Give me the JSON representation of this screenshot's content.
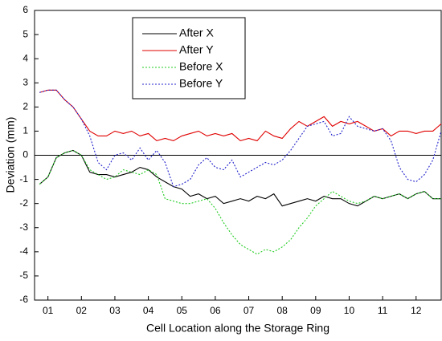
{
  "chart_data": {
    "type": "line",
    "xlabel": "Cell Location along the Storage Ring",
    "ylabel": "Deviation (mm)",
    "x": [
      0.75,
      1,
      1.25,
      1.5,
      1.75,
      2,
      2.25,
      2.5,
      2.75,
      3,
      3.25,
      3.5,
      3.75,
      4,
      4.25,
      4.5,
      4.75,
      5,
      5.25,
      5.5,
      5.75,
      6,
      6.25,
      6.5,
      6.75,
      7,
      7.25,
      7.5,
      7.75,
      8,
      8.25,
      8.5,
      8.75,
      9,
      9.25,
      9.5,
      9.75,
      10,
      10.25,
      10.5,
      10.75,
      11,
      11.25,
      11.5,
      11.75,
      12,
      12.25,
      12.5,
      12.75
    ],
    "series": [
      {
        "name": "After X",
        "color": "#000000",
        "dash": "none",
        "values": [
          -1.2,
          -0.9,
          -0.1,
          0.1,
          0.2,
          0,
          -0.7,
          -0.8,
          -0.8,
          -0.9,
          -0.8,
          -0.7,
          -0.5,
          -0.6,
          -0.9,
          -1.1,
          -1.3,
          -1.4,
          -1.7,
          -1.6,
          -1.8,
          -1.7,
          -2.0,
          -1.9,
          -1.8,
          -1.9,
          -1.7,
          -1.8,
          -1.6,
          -2.1,
          -2.0,
          -1.9,
          -1.8,
          -1.9,
          -1.7,
          -1.8,
          -1.8,
          -2.0,
          -2.1,
          -1.9,
          -1.7,
          -1.8,
          -1.7,
          -1.6,
          -1.8,
          -1.6,
          -1.5,
          -1.8,
          -1.8
        ]
      },
      {
        "name": "After Y",
        "color": "#e00000",
        "dash": "none",
        "values": [
          2.6,
          2.7,
          2.7,
          2.3,
          2.0,
          1.5,
          1.0,
          0.8,
          0.8,
          1.0,
          0.9,
          1.0,
          0.8,
          0.9,
          0.6,
          0.7,
          0.6,
          0.8,
          0.9,
          1.0,
          0.8,
          0.9,
          0.8,
          0.9,
          0.6,
          0.7,
          0.6,
          1.0,
          0.8,
          0.7,
          1.1,
          1.4,
          1.2,
          1.4,
          1.6,
          1.2,
          1.4,
          1.3,
          1.4,
          1.2,
          1.0,
          1.1,
          0.8,
          1.0,
          1.0,
          0.9,
          1.0,
          1.0,
          1.3
        ]
      },
      {
        "name": "Before X",
        "color": "#22cc22",
        "dash": "2 2",
        "values": [
          -1.2,
          -0.9,
          -0.1,
          0.1,
          0.2,
          0,
          -0.6,
          -0.8,
          -1.0,
          -0.9,
          -0.6,
          -0.7,
          -0.8,
          -0.6,
          -0.8,
          -1.8,
          -1.9,
          -2.0,
          -2.0,
          -1.9,
          -1.8,
          -2.2,
          -2.8,
          -3.3,
          -3.7,
          -3.9,
          -4.1,
          -3.9,
          -4.0,
          -3.8,
          -3.5,
          -3.0,
          -2.6,
          -2.1,
          -1.8,
          -1.5,
          -1.7,
          -1.9,
          -2.0,
          -1.9,
          -1.7,
          -1.8,
          -1.7,
          -1.6,
          -1.8,
          -1.6,
          -1.5,
          -1.8,
          -1.8
        ]
      },
      {
        "name": "Before Y",
        "color": "#2222cc",
        "dash": "2 2",
        "values": [
          2.6,
          2.7,
          2.7,
          2.3,
          2.0,
          1.5,
          0.8,
          -0.3,
          -0.6,
          0.0,
          0.1,
          -0.2,
          0.3,
          -0.2,
          0.2,
          -0.3,
          -1.3,
          -1.2,
          -1.0,
          -0.4,
          -0.1,
          -0.5,
          -0.6,
          -0.2,
          -0.9,
          -0.7,
          -0.5,
          -0.3,
          -0.4,
          -0.2,
          0.2,
          0.7,
          1.2,
          1.3,
          1.4,
          0.8,
          0.9,
          1.6,
          1.2,
          1.1,
          1.0,
          1.1,
          0.6,
          -0.5,
          -1.0,
          -1.1,
          -0.8,
          -0.2,
          1.0
        ]
      }
    ],
    "xlim": [
      0.6,
      12.75
    ],
    "xticks": [
      {
        "value": 1,
        "label": "01"
      },
      {
        "value": 2,
        "label": "02"
      },
      {
        "value": 3,
        "label": "03"
      },
      {
        "value": 4,
        "label": "04"
      },
      {
        "value": 5,
        "label": "05"
      },
      {
        "value": 6,
        "label": "06"
      },
      {
        "value": 7,
        "label": "07"
      },
      {
        "value": 8,
        "label": "08"
      },
      {
        "value": 9,
        "label": "09"
      },
      {
        "value": 10,
        "label": "10"
      },
      {
        "value": 11,
        "label": "11"
      },
      {
        "value": 12,
        "label": "12"
      }
    ],
    "ylim": [
      -6,
      6
    ],
    "yticks": [
      -6,
      -5,
      -4,
      -3,
      -2,
      -1,
      0,
      1,
      2,
      3,
      4,
      5,
      6
    ],
    "zero_line": true,
    "legend": "top-left"
  }
}
